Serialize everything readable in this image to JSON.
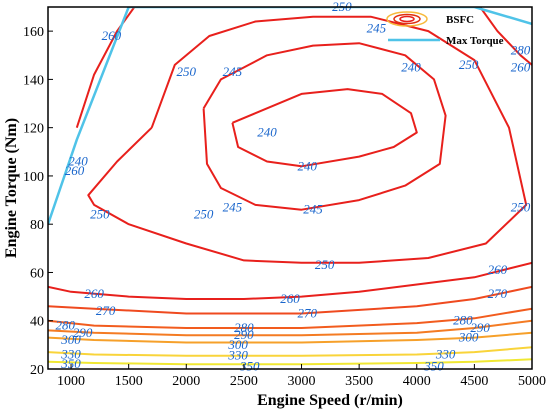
{
  "chart_data": {
    "type": "contour",
    "title": "",
    "xlabel": "Engine Speed (r/min)",
    "ylabel": "Engine Torque (Nm)",
    "xlim": [
      800,
      5000
    ],
    "ylim": [
      20,
      170
    ],
    "x_ticks": [
      1000,
      1500,
      2000,
      2500,
      3000,
      3500,
      4000,
      4500,
      5000
    ],
    "y_ticks": [
      20,
      40,
      60,
      80,
      100,
      120,
      140,
      160
    ],
    "grid": false,
    "legend_placement": "top-right",
    "legend": [
      {
        "name": "BSFC",
        "color": "#e03010"
      },
      {
        "name": "Max Torque",
        "color": "#4fc3e8"
      }
    ],
    "max_torque_curve": [
      {
        "x": 800,
        "y": 80
      },
      {
        "x": 1050,
        "y": 115
      },
      {
        "x": 1500,
        "y": 170
      },
      {
        "x": 4500,
        "y": 170
      },
      {
        "x": 5000,
        "y": 163
      }
    ],
    "contours": [
      {
        "level": 240,
        "color": "#e8201c",
        "points": [
          [
            2400,
            122
          ],
          [
            2600,
            126
          ],
          [
            3000,
            134
          ],
          [
            3400,
            136
          ],
          [
            3700,
            134
          ],
          [
            3950,
            126
          ],
          [
            4000,
            118
          ],
          [
            3800,
            112
          ],
          [
            3500,
            108
          ],
          [
            3000,
            104
          ],
          [
            2700,
            106
          ],
          [
            2450,
            112
          ],
          [
            2400,
            122
          ]
        ]
      },
      {
        "level": 245,
        "color": "#e8201c",
        "points": [
          [
            2150,
            128
          ],
          [
            2300,
            140
          ],
          [
            2700,
            150
          ],
          [
            3100,
            154
          ],
          [
            3500,
            155
          ],
          [
            3900,
            150
          ],
          [
            4150,
            140
          ],
          [
            4250,
            125
          ],
          [
            4200,
            105
          ],
          [
            3900,
            96
          ],
          [
            3500,
            90
          ],
          [
            3000,
            86
          ],
          [
            2600,
            88
          ],
          [
            2300,
            95
          ],
          [
            2180,
            105
          ],
          [
            2150,
            128
          ]
        ]
      },
      {
        "level": 250,
        "color": "#e8201c",
        "points": [
          [
            1700,
            120
          ],
          [
            1900,
            146
          ],
          [
            2200,
            158
          ],
          [
            2600,
            164
          ],
          [
            3100,
            166
          ],
          [
            3600,
            166
          ],
          [
            4100,
            160
          ],
          [
            4500,
            148
          ],
          [
            4800,
            120
          ],
          [
            4950,
            88
          ],
          [
            4600,
            72
          ],
          [
            4100,
            66
          ],
          [
            3500,
            64
          ],
          [
            3000,
            64
          ],
          [
            2500,
            65
          ],
          [
            2000,
            72
          ],
          [
            1500,
            80
          ],
          [
            1200,
            88
          ],
          [
            1150,
            92
          ],
          [
            1400,
            106
          ],
          [
            1700,
            120
          ]
        ]
      },
      {
        "level": 260,
        "color": "#e8201c",
        "points": [
          [
            1050,
            120
          ],
          [
            1200,
            142
          ],
          [
            1400,
            160
          ],
          [
            1550,
            170
          ]
        ]
      },
      {
        "level": 260,
        "color": "#e8201c",
        "points": [
          [
            4550,
            170
          ],
          [
            4700,
            160
          ],
          [
            4900,
            150
          ],
          [
            5000,
            146
          ]
        ]
      },
      {
        "level": 260,
        "color": "#e8201c",
        "points": [
          [
            800,
            54
          ],
          [
            1000,
            52
          ],
          [
            1500,
            50
          ],
          [
            2000,
            49
          ],
          [
            2500,
            49
          ],
          [
            3000,
            50
          ],
          [
            3500,
            52
          ],
          [
            4000,
            55
          ],
          [
            4500,
            58
          ],
          [
            5000,
            64
          ]
        ]
      },
      {
        "level": 270,
        "color": "#ef4a1f",
        "points": [
          [
            800,
            46
          ],
          [
            1200,
            45
          ],
          [
            2000,
            43
          ],
          [
            3000,
            43
          ],
          [
            4000,
            46
          ],
          [
            4500,
            49
          ],
          [
            5000,
            54
          ]
        ]
      },
      {
        "level": 280,
        "color": "#f25c1e",
        "points": [
          [
            800,
            40
          ],
          [
            1200,
            38
          ],
          [
            2000,
            37
          ],
          [
            3000,
            37
          ],
          [
            4000,
            39
          ],
          [
            4500,
            41
          ],
          [
            5000,
            45
          ]
        ]
      },
      {
        "level": 290,
        "color": "#f47b23",
        "points": [
          [
            800,
            36
          ],
          [
            1200,
            35
          ],
          [
            2000,
            34
          ],
          [
            3000,
            34
          ],
          [
            4000,
            35
          ],
          [
            4500,
            37
          ],
          [
            5000,
            40
          ]
        ]
      },
      {
        "level": 300,
        "color": "#f6a02a",
        "points": [
          [
            800,
            33
          ],
          [
            1200,
            32
          ],
          [
            2000,
            31
          ],
          [
            3000,
            31
          ],
          [
            4000,
            32
          ],
          [
            4500,
            33
          ],
          [
            5000,
            35
          ]
        ]
      },
      {
        "level": 330,
        "color": "#f9d43a",
        "points": [
          [
            800,
            27
          ],
          [
            1200,
            26
          ],
          [
            2000,
            25.5
          ],
          [
            3000,
            25.5
          ],
          [
            4000,
            26
          ],
          [
            4500,
            27
          ],
          [
            5000,
            29
          ]
        ]
      },
      {
        "level": 350,
        "color": "#f0e833",
        "points": [
          [
            800,
            23
          ],
          [
            1200,
            22.5
          ],
          [
            2000,
            22
          ],
          [
            3000,
            22
          ],
          [
            4000,
            22.5
          ],
          [
            4500,
            23
          ],
          [
            5000,
            24
          ]
        ]
      }
    ],
    "contour_labels": [
      {
        "text": "240",
        "x": 2700,
        "y": 118
      },
      {
        "text": "240",
        "x": 3050,
        "y": 104
      },
      {
        "text": "240",
        "x": 3950,
        "y": 145
      },
      {
        "text": "245",
        "x": 2400,
        "y": 143
      },
      {
        "text": "245",
        "x": 3650,
        "y": 161
      },
      {
        "text": "245",
        "x": 2400,
        "y": 87
      },
      {
        "text": "245",
        "x": 3100,
        "y": 86
      },
      {
        "text": "250",
        "x": 2000,
        "y": 143
      },
      {
        "text": "250",
        "x": 4450,
        "y": 146
      },
      {
        "text": "250",
        "x": 1250,
        "y": 84
      },
      {
        "text": "250",
        "x": 2150,
        "y": 84
      },
      {
        "text": "250",
        "x": 3200,
        "y": 63
      },
      {
        "text": "250",
        "x": 4900,
        "y": 87
      },
      {
        "text": "250",
        "x": 3350,
        "y": 170
      },
      {
        "text": "260",
        "x": 1350,
        "y": 158
      },
      {
        "text": "260",
        "x": 1030,
        "y": 102
      },
      {
        "text": "260",
        "x": 1200,
        "y": 51
      },
      {
        "text": "260",
        "x": 2900,
        "y": 49
      },
      {
        "text": "260",
        "x": 4700,
        "y": 61
      },
      {
        "text": "260",
        "x": 4900,
        "y": 145
      },
      {
        "text": "270",
        "x": 1300,
        "y": 44
      },
      {
        "text": "270",
        "x": 3050,
        "y": 43
      },
      {
        "text": "270",
        "x": 4700,
        "y": 51
      },
      {
        "text": "280",
        "x": 950,
        "y": 38
      },
      {
        "text": "280",
        "x": 2500,
        "y": 37
      },
      {
        "text": "280",
        "x": 4400,
        "y": 40
      },
      {
        "text": "280",
        "x": 4900,
        "y": 152
      },
      {
        "text": "290",
        "x": 1100,
        "y": 35
      },
      {
        "text": "290",
        "x": 2500,
        "y": 34
      },
      {
        "text": "290",
        "x": 4550,
        "y": 37
      },
      {
        "text": "300",
        "x": 1000,
        "y": 32
      },
      {
        "text": "300",
        "x": 2450,
        "y": 30
      },
      {
        "text": "300",
        "x": 4450,
        "y": 33
      },
      {
        "text": "330",
        "x": 1000,
        "y": 26
      },
      {
        "text": "330",
        "x": 2450,
        "y": 25.5
      },
      {
        "text": "330",
        "x": 4250,
        "y": 26
      },
      {
        "text": "350",
        "x": 1000,
        "y": 22
      },
      {
        "text": "350",
        "x": 2550,
        "y": 21
      },
      {
        "text": "350",
        "x": 4150,
        "y": 21
      },
      {
        "text": "240",
        "x": 1060,
        "y": 106
      }
    ]
  }
}
